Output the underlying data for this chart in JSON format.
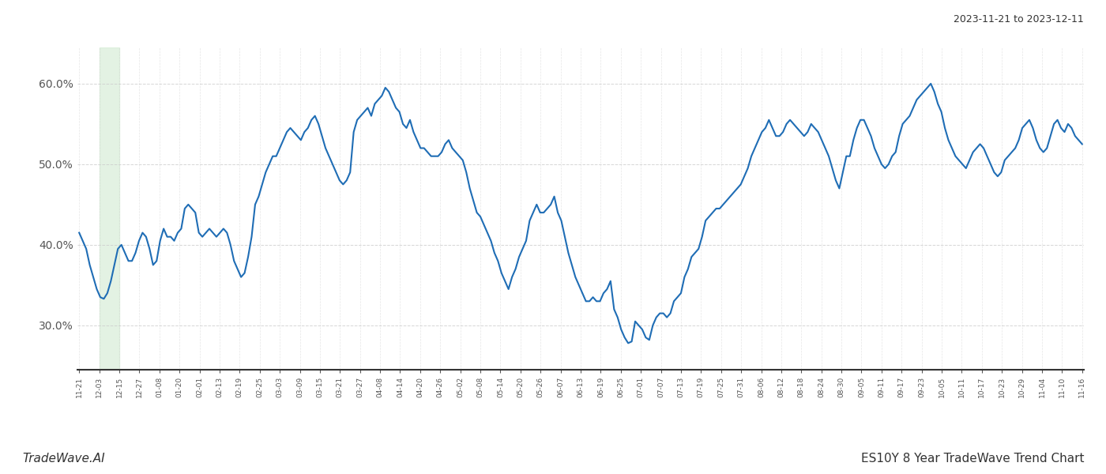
{
  "title_top_right": "2023-11-21 to 2023-12-11",
  "title_bottom_left": "TradeWave.AI",
  "title_bottom_right": "ES10Y 8 Year TradeWave Trend Chart",
  "line_color": "#1f6db5",
  "line_width": 1.5,
  "bg_color": "#ffffff",
  "grid_color": "#cccccc",
  "highlight_color": "#d8edd8",
  "highlight_alpha": 0.7,
  "y_ticks": [
    0.3,
    0.4,
    0.5,
    0.6
  ],
  "y_tick_labels": [
    "30.0%",
    "40.0%",
    "50.0%",
    "60.0%"
  ],
  "ylim": [
    0.245,
    0.645
  ],
  "x_labels": [
    "11-21",
    "12-03",
    "12-15",
    "12-27",
    "01-08",
    "01-20",
    "02-01",
    "02-13",
    "02-19",
    "02-25",
    "03-03",
    "03-09",
    "03-15",
    "03-21",
    "03-27",
    "04-08",
    "04-14",
    "04-20",
    "04-26",
    "05-02",
    "05-08",
    "05-14",
    "05-20",
    "05-26",
    "06-07",
    "06-13",
    "06-19",
    "06-25",
    "07-01",
    "07-07",
    "07-13",
    "07-19",
    "07-25",
    "07-31",
    "08-06",
    "08-12",
    "08-18",
    "08-24",
    "08-30",
    "09-05",
    "09-11",
    "09-17",
    "09-23",
    "10-05",
    "10-11",
    "10-17",
    "10-23",
    "10-29",
    "11-04",
    "11-10",
    "11-16"
  ],
  "highlight_x_start_label": "12-03",
  "highlight_x_end_label": "12-15",
  "y_values": [
    0.415,
    0.405,
    0.395,
    0.375,
    0.36,
    0.345,
    0.335,
    0.333,
    0.34,
    0.355,
    0.375,
    0.395,
    0.4,
    0.39,
    0.38,
    0.38,
    0.39,
    0.405,
    0.415,
    0.41,
    0.395,
    0.375,
    0.38,
    0.405,
    0.42,
    0.41,
    0.41,
    0.405,
    0.415,
    0.42,
    0.445,
    0.45,
    0.445,
    0.44,
    0.415,
    0.41,
    0.415,
    0.42,
    0.415,
    0.41,
    0.415,
    0.42,
    0.415,
    0.4,
    0.38,
    0.37,
    0.36,
    0.365,
    0.385,
    0.41,
    0.45,
    0.46,
    0.475,
    0.49,
    0.5,
    0.51,
    0.51,
    0.52,
    0.53,
    0.54,
    0.545,
    0.54,
    0.535,
    0.53,
    0.54,
    0.545,
    0.555,
    0.56,
    0.55,
    0.535,
    0.52,
    0.51,
    0.5,
    0.49,
    0.48,
    0.475,
    0.48,
    0.49,
    0.54,
    0.555,
    0.56,
    0.565,
    0.57,
    0.56,
    0.575,
    0.58,
    0.585,
    0.595,
    0.59,
    0.58,
    0.57,
    0.565,
    0.55,
    0.545,
    0.555,
    0.54,
    0.53,
    0.52,
    0.52,
    0.515,
    0.51,
    0.51,
    0.51,
    0.515,
    0.525,
    0.53,
    0.52,
    0.515,
    0.51,
    0.505,
    0.49,
    0.47,
    0.455,
    0.44,
    0.435,
    0.425,
    0.415,
    0.405,
    0.39,
    0.38,
    0.365,
    0.355,
    0.345,
    0.36,
    0.37,
    0.385,
    0.395,
    0.405,
    0.43,
    0.44,
    0.45,
    0.44,
    0.44,
    0.445,
    0.45,
    0.46,
    0.44,
    0.43,
    0.41,
    0.39,
    0.375,
    0.36,
    0.35,
    0.34,
    0.33,
    0.33,
    0.335,
    0.33,
    0.33,
    0.34,
    0.345,
    0.355,
    0.32,
    0.31,
    0.295,
    0.285,
    0.278,
    0.28,
    0.305,
    0.3,
    0.295,
    0.285,
    0.282,
    0.3,
    0.31,
    0.315,
    0.315,
    0.31,
    0.315,
    0.33,
    0.335,
    0.34,
    0.36,
    0.37,
    0.385,
    0.39,
    0.395,
    0.41,
    0.43,
    0.435,
    0.44,
    0.445,
    0.445,
    0.45,
    0.455,
    0.46,
    0.465,
    0.47,
    0.475,
    0.485,
    0.495,
    0.51,
    0.52,
    0.53,
    0.54,
    0.545,
    0.555,
    0.545,
    0.535,
    0.535,
    0.54,
    0.55,
    0.555,
    0.55,
    0.545,
    0.54,
    0.535,
    0.54,
    0.55,
    0.545,
    0.54,
    0.53,
    0.52,
    0.51,
    0.495,
    0.48,
    0.47,
    0.49,
    0.51,
    0.51,
    0.53,
    0.545,
    0.555,
    0.555,
    0.545,
    0.535,
    0.52,
    0.51,
    0.5,
    0.495,
    0.5,
    0.51,
    0.515,
    0.535,
    0.55,
    0.555,
    0.56,
    0.57,
    0.58,
    0.585,
    0.59,
    0.595,
    0.6,
    0.59,
    0.575,
    0.565,
    0.545,
    0.53,
    0.52,
    0.51,
    0.505,
    0.5,
    0.495,
    0.505,
    0.515,
    0.52,
    0.525,
    0.52,
    0.51,
    0.5,
    0.49,
    0.485,
    0.49,
    0.505,
    0.51,
    0.515,
    0.52,
    0.53,
    0.545,
    0.55,
    0.555,
    0.545,
    0.53,
    0.52,
    0.515,
    0.52,
    0.535,
    0.55,
    0.555,
    0.545,
    0.54,
    0.55,
    0.545,
    0.535,
    0.53,
    0.525
  ]
}
